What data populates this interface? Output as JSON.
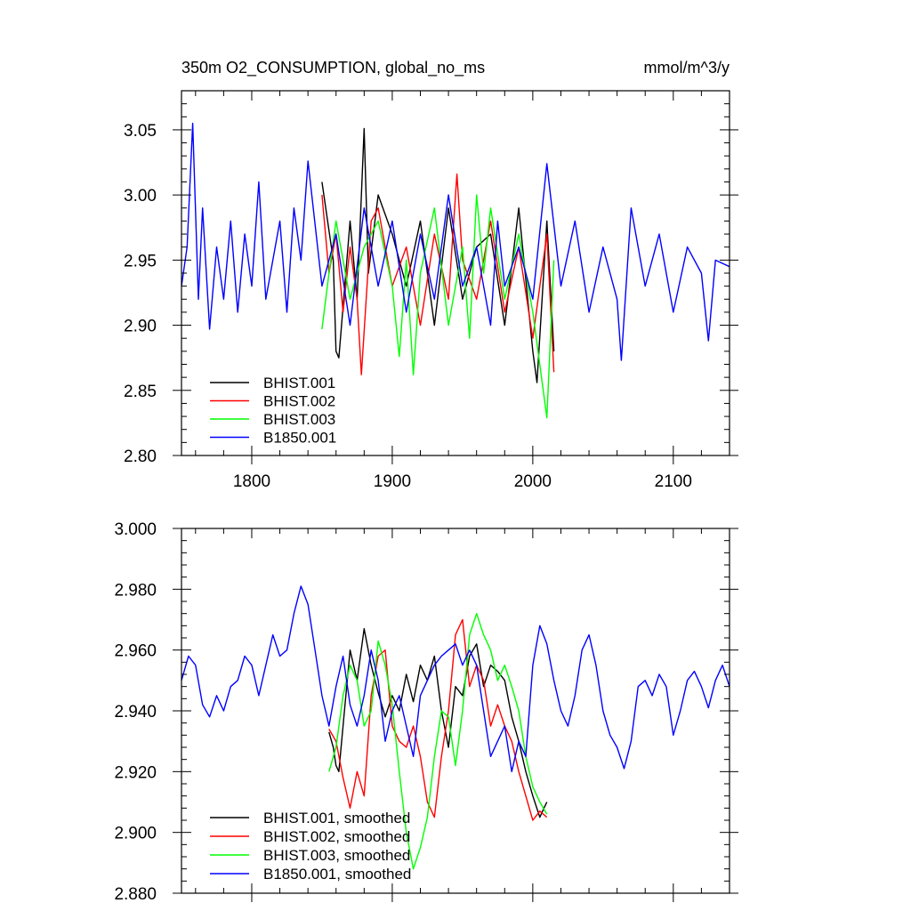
{
  "chart_data": [
    {
      "type": "line",
      "title": "350m O2_CONSUMPTION, global_no_ms",
      "units": "mmol/m^3/y",
      "xlim": [
        1750,
        2140
      ],
      "ylim": [
        2.8,
        3.08
      ],
      "xticks": [
        1800,
        1900,
        2000,
        2100
      ],
      "xtick_labels": [
        "1800",
        "1900",
        "2000",
        "2100"
      ],
      "yticks": [
        2.8,
        2.85,
        2.9,
        2.95,
        3.0,
        3.05
      ],
      "ytick_labels": [
        "2.80",
        "2.85",
        "2.90",
        "2.95",
        "3.00",
        "3.05"
      ],
      "grid": false,
      "legend_position": "bottom-left",
      "series": [
        {
          "name": "BHIST.001",
          "color": "#000000",
          "x": [
            1850,
            1858,
            1860,
            1862,
            1870,
            1875,
            1880,
            1883,
            1890,
            1900,
            1910,
            1920,
            1930,
            1940,
            1950,
            1960,
            1970,
            1980,
            1990,
            2000,
            2003,
            2010,
            2015
          ],
          "y": [
            3.01,
            2.95,
            2.88,
            2.875,
            2.98,
            2.92,
            3.051,
            2.94,
            3.0,
            2.97,
            2.93,
            2.98,
            2.9,
            2.99,
            2.92,
            2.96,
            2.97,
            2.9,
            2.99,
            2.88,
            2.856,
            2.98,
            2.88
          ]
        },
        {
          "name": "BHIST.002",
          "color": "#ff0000",
          "x": [
            1850,
            1855,
            1860,
            1865,
            1870,
            1875,
            1878,
            1885,
            1890,
            1900,
            1910,
            1920,
            1930,
            1940,
            1946,
            1950,
            1960,
            1970,
            1980,
            1990,
            2000,
            2010,
            2015
          ],
          "y": [
            3.0,
            2.94,
            2.97,
            2.91,
            2.96,
            2.92,
            2.862,
            2.98,
            2.99,
            2.93,
            2.96,
            2.9,
            2.97,
            2.92,
            3.016,
            2.95,
            2.92,
            2.98,
            2.91,
            2.96,
            2.89,
            2.97,
            2.864
          ]
        },
        {
          "name": "BHIST.003",
          "color": "#00ff00",
          "x": [
            1850,
            1855,
            1860,
            1870,
            1880,
            1890,
            1900,
            1905,
            1910,
            1915,
            1920,
            1930,
            1940,
            1950,
            1955,
            1960,
            1965,
            1970,
            1980,
            1990,
            2000,
            2010,
            2015
          ],
          "y": [
            2.897,
            2.94,
            2.98,
            2.92,
            2.96,
            2.98,
            2.93,
            2.876,
            2.95,
            2.862,
            2.94,
            2.99,
            2.9,
            2.96,
            2.89,
            3.0,
            2.94,
            2.99,
            2.92,
            2.97,
            2.91,
            2.829,
            2.95
          ]
        },
        {
          "name": "B1850.001",
          "color": "#0000ff",
          "x": [
            1750,
            1754,
            1758,
            1762,
            1765,
            1770,
            1775,
            1780,
            1785,
            1790,
            1795,
            1800,
            1805,
            1810,
            1815,
            1820,
            1825,
            1830,
            1835,
            1840,
            1850,
            1860,
            1870,
            1880,
            1890,
            1900,
            1910,
            1920,
            1930,
            1940,
            1950,
            1960,
            1970,
            1975,
            1980,
            1990,
            2000,
            2010,
            2020,
            2030,
            2040,
            2050,
            2060,
            2063,
            2070,
            2080,
            2090,
            2100,
            2110,
            2120,
            2125,
            2130,
            2140
          ],
          "y": [
            2.93,
            2.96,
            3.055,
            2.92,
            2.99,
            2.897,
            2.96,
            2.92,
            2.98,
            2.91,
            2.97,
            2.93,
            3.01,
            2.92,
            2.95,
            2.98,
            2.91,
            2.99,
            2.95,
            3.026,
            2.93,
            2.97,
            2.9,
            2.99,
            2.93,
            2.98,
            2.91,
            2.97,
            2.92,
            3.0,
            2.93,
            2.96,
            2.9,
            2.98,
            2.93,
            2.96,
            2.92,
            3.024,
            2.93,
            2.98,
            2.91,
            2.96,
            2.92,
            2.873,
            2.99,
            2.93,
            2.97,
            2.91,
            2.96,
            2.94,
            2.888,
            2.95,
            2.945
          ]
        }
      ]
    },
    {
      "type": "line",
      "xlim": [
        1750,
        2140
      ],
      "ylim": [
        2.88,
        3.0
      ],
      "xticks": [
        1800,
        1900,
        2000,
        2100
      ],
      "yticks": [
        2.88,
        2.9,
        2.92,
        2.94,
        2.96,
        2.98,
        3.0
      ],
      "ytick_labels": [
        "2.880",
        "2.900",
        "2.920",
        "2.940",
        "2.960",
        "2.980",
        "3.000"
      ],
      "grid": false,
      "legend_position": "bottom-left",
      "series": [
        {
          "name": "BHIST.001, smoothed",
          "color": "#000000",
          "x": [
            1855,
            1858,
            1860,
            1862,
            1865,
            1870,
            1875,
            1880,
            1885,
            1890,
            1895,
            1900,
            1905,
            1910,
            1915,
            1920,
            1925,
            1930,
            1935,
            1940,
            1945,
            1950,
            1955,
            1960,
            1965,
            1970,
            1975,
            1980,
            1985,
            1990,
            1995,
            2000,
            2005,
            2008,
            2010
          ],
          "y": [
            2.933,
            2.928,
            2.922,
            2.92,
            2.935,
            2.96,
            2.95,
            2.967,
            2.955,
            2.946,
            2.938,
            2.945,
            2.94,
            2.952,
            2.943,
            2.955,
            2.95,
            2.958,
            2.94,
            2.928,
            2.948,
            2.945,
            2.958,
            2.962,
            2.948,
            2.955,
            2.953,
            2.95,
            2.938,
            2.93,
            2.92,
            2.912,
            2.905,
            2.908,
            2.91
          ]
        },
        {
          "name": "BHIST.002, smoothed",
          "color": "#ff0000",
          "x": [
            1855,
            1860,
            1865,
            1870,
            1875,
            1880,
            1885,
            1890,
            1895,
            1900,
            1905,
            1910,
            1915,
            1920,
            1925,
            1930,
            1935,
            1940,
            1945,
            1950,
            1955,
            1960,
            1965,
            1970,
            1975,
            1980,
            1985,
            1990,
            1995,
            2000,
            2005,
            2010
          ],
          "y": [
            2.934,
            2.93,
            2.918,
            2.908,
            2.92,
            2.912,
            2.945,
            2.958,
            2.96,
            2.935,
            2.93,
            2.928,
            2.935,
            2.925,
            2.91,
            2.905,
            2.925,
            2.94,
            2.965,
            2.97,
            2.948,
            2.955,
            2.95,
            2.935,
            2.942,
            2.935,
            2.93,
            2.92,
            2.912,
            2.904,
            2.907,
            2.905
          ]
        },
        {
          "name": "BHIST.003, smoothed",
          "color": "#00ff00",
          "x": [
            1855,
            1860,
            1865,
            1870,
            1875,
            1880,
            1885,
            1890,
            1895,
            1900,
            1905,
            1910,
            1915,
            1920,
            1925,
            1930,
            1935,
            1940,
            1945,
            1950,
            1955,
            1960,
            1965,
            1970,
            1975,
            1980,
            1985,
            1990,
            1995,
            2000,
            2005,
            2010
          ],
          "y": [
            2.92,
            2.928,
            2.945,
            2.955,
            2.95,
            2.935,
            2.94,
            2.963,
            2.955,
            2.942,
            2.92,
            2.9,
            2.888,
            2.895,
            2.905,
            2.925,
            2.94,
            2.938,
            2.922,
            2.94,
            2.965,
            2.972,
            2.965,
            2.96,
            2.95,
            2.955,
            2.948,
            2.94,
            2.925,
            2.915,
            2.91,
            2.906
          ]
        },
        {
          "name": "B1850.001, smoothed",
          "color": "#0000ff",
          "x": [
            1750,
            1755,
            1760,
            1765,
            1770,
            1775,
            1780,
            1785,
            1790,
            1795,
            1800,
            1805,
            1810,
            1815,
            1820,
            1825,
            1830,
            1835,
            1840,
            1845,
            1850,
            1855,
            1860,
            1865,
            1870,
            1875,
            1880,
            1885,
            1890,
            1895,
            1900,
            1905,
            1910,
            1915,
            1920,
            1925,
            1930,
            1935,
            1940,
            1945,
            1950,
            1955,
            1960,
            1965,
            1970,
            1975,
            1980,
            1985,
            1990,
            1995,
            2000,
            2005,
            2010,
            2015,
            2020,
            2025,
            2030,
            2035,
            2040,
            2045,
            2050,
            2055,
            2060,
            2065,
            2070,
            2075,
            2080,
            2085,
            2090,
            2095,
            2100,
            2105,
            2110,
            2115,
            2120,
            2125,
            2130,
            2135,
            2140
          ],
          "y": [
            2.95,
            2.958,
            2.955,
            2.942,
            2.938,
            2.945,
            2.94,
            2.948,
            2.95,
            2.958,
            2.955,
            2.945,
            2.955,
            2.965,
            2.958,
            2.96,
            2.972,
            2.981,
            2.975,
            2.96,
            2.945,
            2.935,
            2.948,
            2.958,
            2.942,
            2.935,
            2.945,
            2.96,
            2.95,
            2.93,
            2.94,
            2.945,
            2.935,
            2.925,
            2.945,
            2.95,
            2.955,
            2.958,
            2.96,
            2.962,
            2.955,
            2.96,
            2.955,
            2.94,
            2.925,
            2.93,
            2.935,
            2.92,
            2.93,
            2.925,
            2.955,
            2.968,
            2.962,
            2.95,
            2.94,
            2.935,
            2.945,
            2.96,
            2.965,
            2.955,
            2.94,
            2.932,
            2.928,
            2.921,
            2.93,
            2.948,
            2.95,
            2.945,
            2.952,
            2.948,
            2.932,
            2.94,
            2.95,
            2.953,
            2.948,
            2.941,
            2.95,
            2.955,
            2.948
          ]
        }
      ]
    }
  ]
}
